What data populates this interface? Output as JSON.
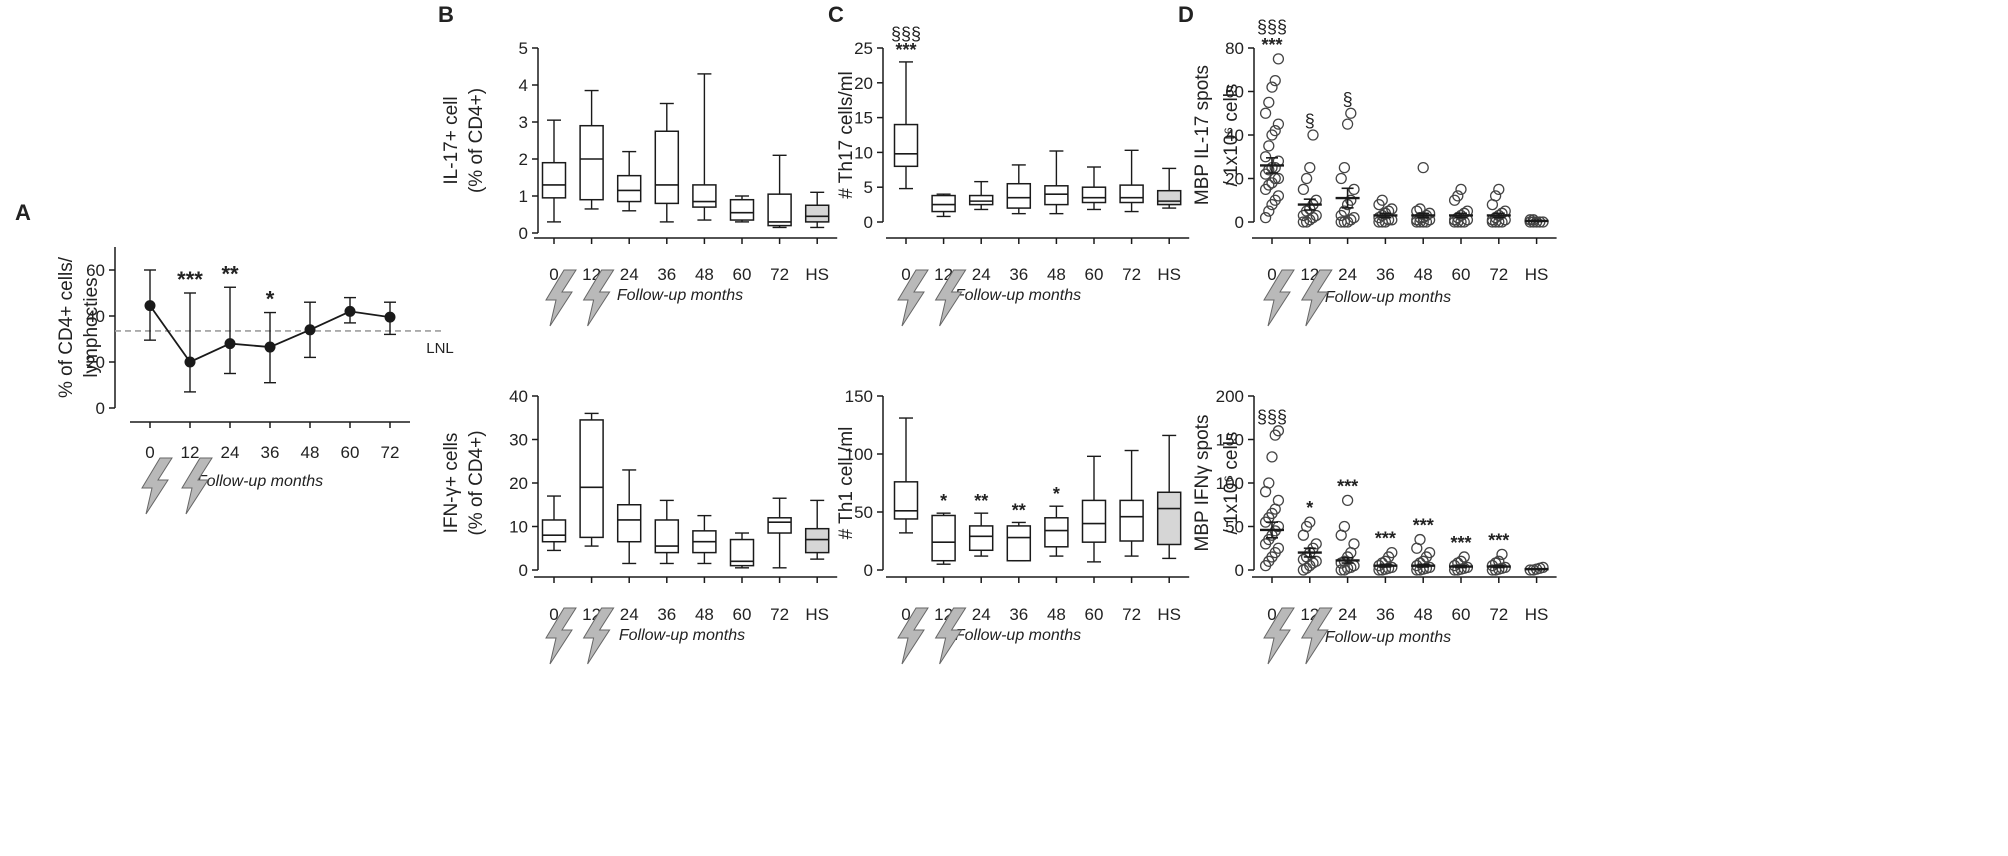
{
  "figure": {
    "x_axis_title": "Follow-up months",
    "bolt_icon": "lightning-bolt-icon",
    "colors": {
      "ink": "#1a1a1a",
      "lnl": "#9e9e9e",
      "hs_fill": "#d6d6d6",
      "bolt": "#b9b9b9"
    }
  },
  "chart_data": [
    {
      "panel": "A",
      "type": "line",
      "ylabel": [
        "% of CD4+ cells/",
        "lymphocties"
      ],
      "categories": [
        "0",
        "12",
        "24",
        "36",
        "48",
        "60",
        "72"
      ],
      "ylim": [
        0,
        70
      ],
      "yticks": [
        0,
        20,
        40,
        60
      ],
      "series": [
        {
          "name": "% CD4+",
          "values": [
            44.5,
            20,
            28,
            26.5,
            34,
            42,
            39.5
          ],
          "err_low": [
            29.5,
            7,
            15,
            11,
            22,
            37,
            32
          ],
          "err_high": [
            60,
            50,
            52.5,
            41.5,
            46,
            48,
            46
          ]
        }
      ],
      "reference_line": {
        "label": "LNL",
        "value": 33.5
      },
      "annotations": [
        "",
        "***",
        "**",
        "*",
        "",
        "",
        ""
      ],
      "treatment_months": [
        "0",
        "12"
      ]
    },
    {
      "panel": "B",
      "type": "box",
      "ylabel": [
        "IL-17+ cell",
        "(% of CD4+)"
      ],
      "categories": [
        "0",
        "12",
        "24",
        "36",
        "48",
        "60",
        "72",
        "HS"
      ],
      "ylim": [
        0,
        5
      ],
      "yticks": [
        0,
        1,
        2,
        3,
        4,
        5
      ],
      "boxes": [
        {
          "min": 0.3,
          "q1": 0.95,
          "median": 1.3,
          "q3": 1.9,
          "max": 3.05
        },
        {
          "min": 0.65,
          "q1": 0.9,
          "median": 2.0,
          "q3": 2.9,
          "max": 3.85
        },
        {
          "min": 0.6,
          "q1": 0.85,
          "median": 1.15,
          "q3": 1.55,
          "max": 2.2
        },
        {
          "min": 0.3,
          "q1": 0.8,
          "median": 1.3,
          "q3": 2.75,
          "max": 3.5
        },
        {
          "min": 0.35,
          "q1": 0.7,
          "median": 0.85,
          "q3": 1.3,
          "max": 4.3
        },
        {
          "min": 0.3,
          "q1": 0.35,
          "median": 0.55,
          "q3": 0.9,
          "max": 1.0
        },
        {
          "min": 0.15,
          "q1": 0.2,
          "median": 0.3,
          "q3": 1.05,
          "max": 2.1
        },
        {
          "min": 0.15,
          "q1": 0.3,
          "median": 0.45,
          "q3": 0.75,
          "max": 1.1
        }
      ],
      "annotations": [
        "",
        "",
        "",
        "",
        "",
        "",
        "",
        ""
      ],
      "treatment_months": [
        "0",
        "12"
      ]
    },
    {
      "panel": "C",
      "type": "box",
      "ylabel": [
        "# Th17 cells/ml"
      ],
      "categories": [
        "0",
        "12",
        "24",
        "36",
        "48",
        "60",
        "72",
        "HS"
      ],
      "ylim": [
        0,
        25
      ],
      "yticks": [
        0,
        5,
        10,
        15,
        20,
        25
      ],
      "boxes": [
        {
          "min": 4.8,
          "q1": 8.0,
          "median": 9.8,
          "q3": 14.0,
          "max": 23.0
        },
        {
          "min": 0.8,
          "q1": 1.5,
          "median": 2.5,
          "q3": 3.8,
          "max": 4.0
        },
        {
          "min": 1.8,
          "q1": 2.5,
          "median": 3.0,
          "q3": 3.8,
          "max": 5.8
        },
        {
          "min": 1.2,
          "q1": 2.0,
          "median": 3.5,
          "q3": 5.5,
          "max": 8.2
        },
        {
          "min": 1.2,
          "q1": 2.5,
          "median": 4.0,
          "q3": 5.2,
          "max": 10.2
        },
        {
          "min": 1.8,
          "q1": 2.8,
          "median": 3.5,
          "q3": 5.0,
          "max": 7.9
        },
        {
          "min": 1.5,
          "q1": 2.8,
          "median": 3.5,
          "q3": 5.3,
          "max": 10.3
        },
        {
          "min": 2.0,
          "q1": 2.5,
          "median": 3.0,
          "q3": 4.5,
          "max": 7.7
        }
      ],
      "annotations": [
        "§§§\n***",
        "",
        "",
        "",
        "",
        "",
        "",
        ""
      ],
      "treatment_months": [
        "0",
        "12"
      ]
    },
    {
      "panel": "D",
      "type": "scatter",
      "ylabel": [
        "MBP IL-17 spots",
        "/ 1x10⁶ cells"
      ],
      "categories": [
        "0",
        "12",
        "24",
        "36",
        "48",
        "60",
        "72",
        "HS"
      ],
      "ylim": [
        0,
        80
      ],
      "yticks": [
        0,
        20,
        40,
        60,
        80
      ],
      "points": [
        [
          2,
          5,
          8,
          10,
          12,
          15,
          17,
          18,
          20,
          20,
          22,
          24,
          25,
          25,
          28,
          30,
          35,
          40,
          42,
          45,
          50,
          55,
          62,
          65,
          75
        ],
        [
          0,
          0,
          1,
          2,
          3,
          3,
          5,
          6,
          8,
          10,
          15,
          20,
          25,
          40
        ],
        [
          0,
          0,
          0,
          1,
          2,
          3,
          5,
          8,
          10,
          15,
          20,
          25,
          45,
          50
        ],
        [
          0,
          0,
          0,
          1,
          1,
          2,
          3,
          4,
          5,
          6,
          8,
          10
        ],
        [
          0,
          0,
          0,
          0,
          1,
          1,
          2,
          2,
          3,
          4,
          5,
          6,
          25
        ],
        [
          0,
          0,
          0,
          0,
          1,
          1,
          2,
          3,
          4,
          5,
          10,
          12,
          15
        ],
        [
          0,
          0,
          0,
          0,
          1,
          1,
          2,
          3,
          4,
          5,
          8,
          12,
          15
        ],
        [
          0,
          0,
          0,
          0,
          0,
          1,
          1
        ]
      ],
      "means": [
        26,
        8,
        11,
        3,
        3,
        3,
        3,
        0.5
      ],
      "sem": [
        3.5,
        2.5,
        4.5,
        1,
        1,
        1,
        1,
        0.3
      ],
      "annotations": [
        "§§§\n***",
        "§",
        "§",
        "",
        "",
        "",
        "",
        ""
      ],
      "treatment_months": [
        "0",
        "12"
      ]
    },
    {
      "panel": "B2",
      "type": "box",
      "ylabel": [
        "IFN-γ+ cells",
        "(% of CD4+)"
      ],
      "categories": [
        "0",
        "12",
        "24",
        "36",
        "48",
        "60",
        "72",
        "HS"
      ],
      "ylim": [
        0,
        40
      ],
      "yticks": [
        0,
        10,
        20,
        30,
        40
      ],
      "boxes": [
        {
          "min": 4.5,
          "q1": 6.5,
          "median": 8.0,
          "q3": 11.5,
          "max": 17.0
        },
        {
          "min": 5.5,
          "q1": 7.5,
          "median": 19.0,
          "q3": 34.5,
          "max": 36.0
        },
        {
          "min": 1.5,
          "q1": 6.5,
          "median": 11.5,
          "q3": 15.0,
          "max": 23.0
        },
        {
          "min": 1.5,
          "q1": 4.0,
          "median": 5.5,
          "q3": 11.5,
          "max": 16.0
        },
        {
          "min": 1.5,
          "q1": 4.0,
          "median": 6.5,
          "q3": 9.0,
          "max": 12.5
        },
        {
          "min": 0.5,
          "q1": 1.0,
          "median": 2.0,
          "q3": 7.0,
          "max": 8.5
        },
        {
          "min": 0.5,
          "q1": 8.5,
          "median": 11.0,
          "q3": 12.0,
          "max": 16.5
        },
        {
          "min": 2.5,
          "q1": 4.0,
          "median": 7.0,
          "q3": 9.5,
          "max": 16.0
        }
      ],
      "annotations": [
        "",
        "",
        "",
        "",
        "",
        "",
        "",
        ""
      ],
      "treatment_months": [
        "0",
        "12"
      ]
    },
    {
      "panel": "C2",
      "type": "box",
      "ylabel": [
        "# Th1 cell /ml"
      ],
      "categories": [
        "0",
        "12",
        "24",
        "36",
        "48",
        "60",
        "72",
        "HS"
      ],
      "ylim": [
        0,
        150
      ],
      "yticks": [
        0,
        50,
        100,
        150
      ],
      "boxes": [
        {
          "min": 32,
          "q1": 44,
          "median": 51,
          "q3": 76,
          "max": 131
        },
        {
          "min": 5,
          "q1": 8,
          "median": 24,
          "q3": 47,
          "max": 49
        },
        {
          "min": 12,
          "q1": 17,
          "median": 29,
          "q3": 38,
          "max": 49
        },
        {
          "min": 8,
          "q1": 8,
          "median": 28,
          "q3": 38,
          "max": 41
        },
        {
          "min": 12,
          "q1": 20,
          "median": 34,
          "q3": 45,
          "max": 55
        },
        {
          "min": 7,
          "q1": 24,
          "median": 40,
          "q3": 60,
          "max": 98
        },
        {
          "min": 12,
          "q1": 25,
          "median": 46,
          "q3": 60,
          "max": 103
        },
        {
          "min": 10,
          "q1": 22,
          "median": 53,
          "q3": 67,
          "max": 116
        }
      ],
      "annotations": [
        "",
        "*",
        "**",
        "**",
        "*",
        "",
        "",
        ""
      ],
      "treatment_months": [
        "0",
        "12"
      ]
    },
    {
      "panel": "D2",
      "type": "scatter",
      "ylabel": [
        "MBP IFNγ spots",
        "/ 1x10⁶ cells"
      ],
      "categories": [
        "0",
        "12",
        "24",
        "36",
        "48",
        "60",
        "72",
        "HS"
      ],
      "ylim": [
        0,
        200
      ],
      "yticks": [
        0,
        50,
        100,
        150,
        200
      ],
      "points": [
        [
          5,
          10,
          15,
          20,
          25,
          30,
          35,
          40,
          45,
          50,
          55,
          60,
          65,
          70,
          80,
          90,
          100,
          130,
          155,
          160
        ],
        [
          0,
          2,
          5,
          8,
          10,
          12,
          15,
          20,
          25,
          30,
          40,
          50,
          55
        ],
        [
          0,
          0,
          2,
          3,
          5,
          8,
          10,
          15,
          20,
          30,
          40,
          50,
          80
        ],
        [
          0,
          0,
          1,
          2,
          3,
          5,
          8,
          10,
          15,
          20
        ],
        [
          0,
          0,
          1,
          2,
          3,
          5,
          8,
          10,
          15,
          20,
          25,
          35
        ],
        [
          0,
          0,
          1,
          2,
          3,
          5,
          8,
          10,
          15
        ],
        [
          0,
          0,
          1,
          2,
          3,
          5,
          8,
          10,
          18
        ],
        [
          0,
          0,
          1,
          2,
          3
        ]
      ],
      "means": [
        46,
        20,
        11,
        5,
        5,
        4,
        4,
        1
      ],
      "sem": [
        9,
        5,
        3,
        1.5,
        1.5,
        1.2,
        1.2,
        0.5
      ],
      "annotations": [
        "§§§",
        "*",
        "***",
        "***",
        "***",
        "***",
        "***",
        ""
      ],
      "treatment_months": [
        "0",
        "12"
      ]
    }
  ]
}
